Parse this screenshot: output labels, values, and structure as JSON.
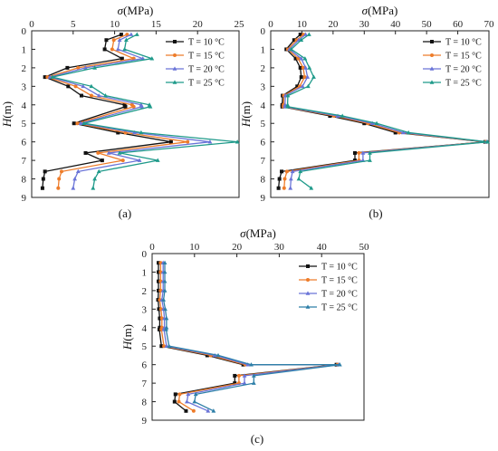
{
  "chart_data": [
    {
      "panel": "(a)",
      "type": "line",
      "xlabel_sym": "σ",
      "xlabel_unit": "(MPa)",
      "ylabel_sym": "H",
      "ylabel_unit": "(m)",
      "xlim": [
        0,
        25
      ],
      "ylim": [
        0,
        9
      ],
      "x_ticks": [
        0,
        5,
        10,
        15,
        20,
        25
      ],
      "y_ticks": [
        0,
        1,
        2,
        3,
        4,
        5,
        6,
        7,
        8,
        9
      ],
      "legend_position": "top-right",
      "series": [
        {
          "name": "T = 10 °C",
          "color": "#111111",
          "marker": "square",
          "points": [
            [
              10.8,
              0.2
            ],
            [
              9.0,
              0.5
            ],
            [
              8.8,
              1.0
            ],
            [
              10.9,
              1.5
            ],
            [
              4.3,
              2.0
            ],
            [
              1.6,
              2.5
            ],
            [
              4.4,
              3.0
            ],
            [
              6.0,
              3.5
            ],
            [
              11.2,
              4.0
            ],
            [
              11.3,
              4.1
            ],
            [
              5.1,
              5.0
            ],
            [
              10.4,
              5.5
            ],
            [
              16.8,
              6.0
            ],
            [
              6.5,
              6.6
            ],
            [
              8.5,
              7.0
            ],
            [
              1.6,
              7.6
            ],
            [
              1.4,
              8.0
            ],
            [
              1.3,
              8.5
            ]
          ]
        },
        {
          "name": "T = 15 °C",
          "color": "#ee7c2a",
          "marker": "circle",
          "points": [
            [
              11.5,
              0.2
            ],
            [
              9.9,
              0.5
            ],
            [
              9.7,
              1.0
            ],
            [
              12.3,
              1.5
            ],
            [
              5.6,
              2.0
            ],
            [
              1.9,
              2.5
            ],
            [
              5.3,
              3.0
            ],
            [
              7.2,
              3.5
            ],
            [
              12.1,
              4.0
            ],
            [
              12.3,
              4.1
            ],
            [
              5.5,
              5.0
            ],
            [
              11.3,
              5.5
            ],
            [
              18.8,
              6.0
            ],
            [
              8.0,
              6.6
            ],
            [
              11.0,
              7.0
            ],
            [
              3.6,
              7.6
            ],
            [
              3.3,
              8.0
            ],
            [
              3.2,
              8.5
            ]
          ]
        },
        {
          "name": "T = 20 °C",
          "color": "#6a74d8",
          "marker": "triangle",
          "points": [
            [
              12.0,
              0.2
            ],
            [
              10.6,
              0.5
            ],
            [
              10.4,
              1.0
            ],
            [
              13.4,
              1.5
            ],
            [
              6.5,
              2.0
            ],
            [
              2.2,
              2.5
            ],
            [
              6.2,
              3.0
            ],
            [
              8.1,
              3.5
            ],
            [
              13.2,
              4.0
            ],
            [
              13.3,
              4.1
            ],
            [
              5.9,
              5.0
            ],
            [
              12.4,
              5.5
            ],
            [
              21.5,
              6.0
            ],
            [
              9.3,
              6.6
            ],
            [
              13.0,
              7.0
            ],
            [
              5.6,
              7.6
            ],
            [
              5.2,
              8.0
            ],
            [
              5.0,
              8.5
            ]
          ]
        },
        {
          "name": "T = 25 °C",
          "color": "#1f9a8a",
          "marker": "triangle",
          "points": [
            [
              12.7,
              0.2
            ],
            [
              11.4,
              0.5
            ],
            [
              11.2,
              1.0
            ],
            [
              14.5,
              1.5
            ],
            [
              7.6,
              2.0
            ],
            [
              2.5,
              2.5
            ],
            [
              7.2,
              3.0
            ],
            [
              8.9,
              3.5
            ],
            [
              14.2,
              4.0
            ],
            [
              14.3,
              4.1
            ],
            [
              6.3,
              5.0
            ],
            [
              13.2,
              5.5
            ],
            [
              24.8,
              6.0
            ],
            [
              10.6,
              6.6
            ],
            [
              15.2,
              7.0
            ],
            [
              8.1,
              7.6
            ],
            [
              7.6,
              8.0
            ],
            [
              7.4,
              8.5
            ]
          ]
        }
      ]
    },
    {
      "panel": "(b)",
      "type": "line",
      "xlabel_sym": "σ",
      "xlabel_unit": "(MPa)",
      "ylabel_sym": "H",
      "ylabel_unit": "(m)",
      "xlim": [
        0,
        70
      ],
      "ylim": [
        0,
        9
      ],
      "x_ticks": [
        0,
        10,
        20,
        30,
        40,
        50,
        60,
        70
      ],
      "y_ticks": [
        0,
        1,
        2,
        3,
        4,
        5,
        6,
        7,
        8,
        9
      ],
      "legend_position": "top-right",
      "series": [
        {
          "name": "T = 10 °C",
          "color": "#111111",
          "marker": "square",
          "points": [
            [
              9.5,
              0.2
            ],
            [
              7.5,
              0.5
            ],
            [
              5.0,
              1.0
            ],
            [
              8.0,
              1.5
            ],
            [
              9.5,
              2.0
            ],
            [
              9.8,
              2.5
            ],
            [
              8.5,
              3.0
            ],
            [
              3.8,
              3.5
            ],
            [
              3.7,
              4.0
            ],
            [
              3.7,
              4.1
            ],
            [
              19.0,
              4.6
            ],
            [
              30.0,
              5.0
            ],
            [
              40.0,
              5.5
            ],
            [
              68.8,
              6.0
            ],
            [
              27.0,
              6.6
            ],
            [
              27.0,
              7.0
            ],
            [
              3.5,
              7.6
            ],
            [
              2.8,
              8.0
            ],
            [
              2.5,
              8.5
            ]
          ]
        },
        {
          "name": "T = 15 °C",
          "color": "#ee7c2a",
          "marker": "circle",
          "points": [
            [
              10.5,
              0.2
            ],
            [
              8.3,
              0.5
            ],
            [
              5.5,
              1.0
            ],
            [
              8.8,
              1.5
            ],
            [
              10.4,
              2.0
            ],
            [
              10.9,
              2.5
            ],
            [
              9.3,
              3.0
            ],
            [
              4.2,
              3.5
            ],
            [
              4.1,
              4.0
            ],
            [
              4.1,
              4.1
            ],
            [
              20.3,
              4.6
            ],
            [
              31.2,
              5.0
            ],
            [
              41.2,
              5.5
            ],
            [
              69.0,
              6.0
            ],
            [
              28.3,
              6.6
            ],
            [
              28.3,
              7.0
            ],
            [
              5.2,
              7.6
            ],
            [
              4.5,
              8.0
            ],
            [
              4.3,
              8.5
            ]
          ]
        },
        {
          "name": "T = 20 °C",
          "color": "#6a74d8",
          "marker": "triangle",
          "points": [
            [
              11.2,
              0.2
            ],
            [
              9.0,
              0.5
            ],
            [
              6.0,
              1.0
            ],
            [
              9.8,
              1.5
            ],
            [
              11.2,
              2.0
            ],
            [
              11.8,
              2.5
            ],
            [
              10.2,
              3.0
            ],
            [
              4.7,
              3.5
            ],
            [
              4.6,
              4.0
            ],
            [
              4.6,
              4.1
            ],
            [
              21.5,
              4.6
            ],
            [
              32.6,
              5.0
            ],
            [
              42.5,
              5.5
            ],
            [
              69.3,
              6.0
            ],
            [
              29.6,
              6.6
            ],
            [
              29.6,
              7.0
            ],
            [
              7.0,
              7.6
            ],
            [
              6.5,
              8.0
            ],
            [
              6.3,
              8.5
            ]
          ]
        },
        {
          "name": "T = 25 °C",
          "color": "#1f9a8a",
          "marker": "triangle",
          "points": [
            [
              12.3,
              0.2
            ],
            [
              9.8,
              0.5
            ],
            [
              6.6,
              1.0
            ],
            [
              11.0,
              1.5
            ],
            [
              12.4,
              2.0
            ],
            [
              13.8,
              2.5
            ],
            [
              12.0,
              3.0
            ],
            [
              5.5,
              3.5
            ],
            [
              5.4,
              4.0
            ],
            [
              5.4,
              4.1
            ],
            [
              23.0,
              4.6
            ],
            [
              34.0,
              5.0
            ],
            [
              44.2,
              5.5
            ],
            [
              69.6,
              6.0
            ],
            [
              31.8,
              6.6
            ],
            [
              31.8,
              7.0
            ],
            [
              9.5,
              7.6
            ],
            [
              9.0,
              8.0
            ],
            [
              13.0,
              8.5
            ]
          ]
        }
      ]
    },
    {
      "panel": "(c)",
      "type": "line",
      "xlabel_sym": "σ",
      "xlabel_unit": "(MPa)",
      "ylabel_sym": "H",
      "ylabel_unit": "(m)",
      "xlim": [
        0,
        50
      ],
      "ylim": [
        0,
        9
      ],
      "x_ticks": [
        0,
        10,
        20,
        30,
        40,
        50
      ],
      "y_ticks": [
        0,
        1,
        2,
        3,
        4,
        5,
        6,
        7,
        8,
        9
      ],
      "legend_position": "top-right",
      "series": [
        {
          "name": "T = 10 °C",
          "color": "#111111",
          "marker": "square",
          "points": [
            [
              1.5,
              0.5
            ],
            [
              1.5,
              1.0
            ],
            [
              1.5,
              1.5
            ],
            [
              1.5,
              2.0
            ],
            [
              1.4,
              2.5
            ],
            [
              1.6,
              3.0
            ],
            [
              1.8,
              3.5
            ],
            [
              1.8,
              4.0
            ],
            [
              1.7,
              4.1
            ],
            [
              2.2,
              5.0
            ],
            [
              13.0,
              5.5
            ],
            [
              21.5,
              6.0
            ],
            [
              43.5,
              6.0
            ],
            [
              19.5,
              6.6
            ],
            [
              19.5,
              7.0
            ],
            [
              5.5,
              7.6
            ],
            [
              5.3,
              8.0
            ],
            [
              8.0,
              8.5
            ]
          ]
        },
        {
          "name": "T = 15 °C",
          "color": "#ee7c2a",
          "marker": "circle",
          "points": [
            [
              2.0,
              0.5
            ],
            [
              2.0,
              1.0
            ],
            [
              2.0,
              1.5
            ],
            [
              2.0,
              2.0
            ],
            [
              1.8,
              2.5
            ],
            [
              2.1,
              3.0
            ],
            [
              2.3,
              3.5
            ],
            [
              2.3,
              4.0
            ],
            [
              2.2,
              4.1
            ],
            [
              2.8,
              5.0
            ],
            [
              13.8,
              5.5
            ],
            [
              22.0,
              6.0
            ],
            [
              43.8,
              6.0
            ],
            [
              20.5,
              6.6
            ],
            [
              20.5,
              7.0
            ],
            [
              6.5,
              7.6
            ],
            [
              6.3,
              8.0
            ],
            [
              9.8,
              8.5
            ]
          ]
        },
        {
          "name": "T = 20 °C",
          "color": "#6a74d8",
          "marker": "triangle",
          "points": [
            [
              2.6,
              0.5
            ],
            [
              2.6,
              1.0
            ],
            [
              2.6,
              1.5
            ],
            [
              2.6,
              2.0
            ],
            [
              2.3,
              2.5
            ],
            [
              2.7,
              3.0
            ],
            [
              2.9,
              3.5
            ],
            [
              2.9,
              4.0
            ],
            [
              2.8,
              4.1
            ],
            [
              3.4,
              5.0
            ],
            [
              14.8,
              5.5
            ],
            [
              22.6,
              6.0
            ],
            [
              44.1,
              6.0
            ],
            [
              21.8,
              6.6
            ],
            [
              21.8,
              7.0
            ],
            [
              8.5,
              7.6
            ],
            [
              8.2,
              8.0
            ],
            [
              13.2,
              8.5
            ]
          ]
        },
        {
          "name": "T = 25 °C",
          "color": "#2e7fa8",
          "marker": "triangle",
          "points": [
            [
              3.0,
              0.5
            ],
            [
              3.0,
              1.0
            ],
            [
              3.0,
              1.5
            ],
            [
              3.0,
              2.0
            ],
            [
              2.7,
              2.5
            ],
            [
              3.1,
              3.0
            ],
            [
              3.4,
              3.5
            ],
            [
              3.4,
              4.0
            ],
            [
              3.3,
              4.1
            ],
            [
              4.0,
              5.0
            ],
            [
              15.6,
              5.5
            ],
            [
              23.4,
              6.0
            ],
            [
              44.3,
              6.0
            ],
            [
              24.0,
              6.6
            ],
            [
              24.0,
              7.0
            ],
            [
              10.3,
              7.6
            ],
            [
              10.0,
              8.0
            ],
            [
              14.5,
              8.5
            ]
          ]
        }
      ]
    }
  ]
}
